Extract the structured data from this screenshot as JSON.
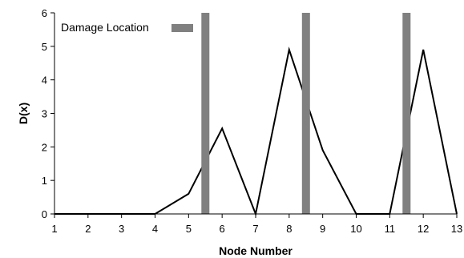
{
  "chart_data": {
    "type": "line",
    "title": "",
    "xlabel": "Node Number",
    "ylabel": "D(x)",
    "xlim": [
      1,
      13
    ],
    "ylim": [
      0,
      6
    ],
    "xticks": [
      "1",
      "2",
      "3",
      "4",
      "5",
      "6",
      "7",
      "8",
      "9",
      "10",
      "11",
      "12",
      "13"
    ],
    "yticks": [
      "0",
      "1",
      "2",
      "3",
      "4",
      "5",
      "6"
    ],
    "grid": false,
    "legend_position": "top-left",
    "series": [
      {
        "type": "line",
        "color": "#000000",
        "x": [
          1,
          2,
          3,
          4,
          5,
          6,
          7,
          8,
          9,
          10,
          11,
          12,
          13
        ],
        "y": [
          0,
          0,
          0,
          0,
          0.6,
          2.55,
          0,
          4.9,
          1.9,
          0,
          0,
          4.9,
          0
        ]
      }
    ],
    "damage_locations": {
      "name": "Damage Location",
      "color": "#808080",
      "x": [
        5.5,
        8.5,
        11.5
      ]
    }
  }
}
